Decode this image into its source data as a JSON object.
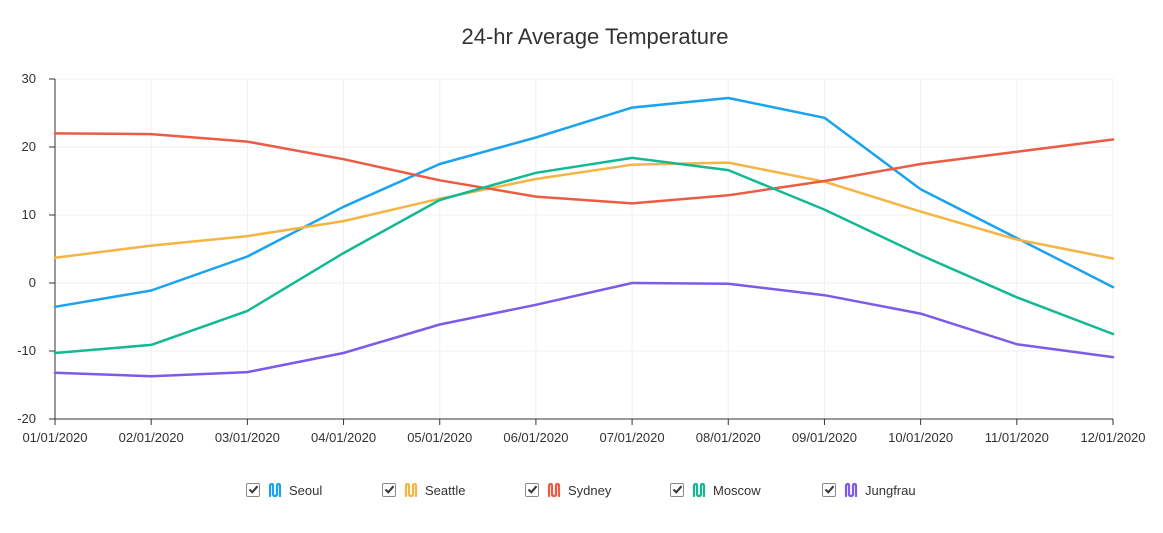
{
  "chart_data": {
    "type": "line",
    "title": "24-hr Average Temperature",
    "xlabel": "",
    "ylabel": "",
    "categories": [
      "01/01/2020",
      "02/01/2020",
      "03/01/2020",
      "04/01/2020",
      "05/01/2020",
      "06/01/2020",
      "07/01/2020",
      "08/01/2020",
      "09/01/2020",
      "10/01/2020",
      "11/01/2020",
      "12/01/2020"
    ],
    "ylim": [
      -20,
      30
    ],
    "yticks": [
      -20,
      -10,
      0,
      10,
      20,
      30
    ],
    "grid": true,
    "legend_position": "bottom",
    "series": [
      {
        "name": "Seoul",
        "color": "#1ba3ef",
        "values": [
          -3.5,
          -1.1,
          3.9,
          11.2,
          17.5,
          21.4,
          25.8,
          27.2,
          24.3,
          13.8,
          6.6,
          -0.6
        ]
      },
      {
        "name": "Seattle",
        "color": "#f6b443",
        "values": [
          3.7,
          5.5,
          6.9,
          9.1,
          12.4,
          15.3,
          17.4,
          17.7,
          14.9,
          10.5,
          6.4,
          3.6
        ]
      },
      {
        "name": "Sydney",
        "color": "#ec5b44",
        "values": [
          22.0,
          21.9,
          20.8,
          18.2,
          15.1,
          12.7,
          11.7,
          12.9,
          15.0,
          17.5,
          19.3,
          21.1
        ]
      },
      {
        "name": "Moscow",
        "color": "#12b993",
        "values": [
          -10.3,
          -9.1,
          -4.1,
          4.4,
          12.2,
          16.2,
          18.4,
          16.6,
          10.8,
          4.1,
          -2.1,
          -7.5
        ]
      },
      {
        "name": "Jungfrau",
        "color": "#7d5ae8",
        "values": [
          -13.2,
          -13.7,
          -13.1,
          -10.3,
          -6.1,
          -3.2,
          0.0,
          -0.1,
          -1.8,
          -4.5,
          -9.0,
          -10.9
        ]
      }
    ]
  }
}
